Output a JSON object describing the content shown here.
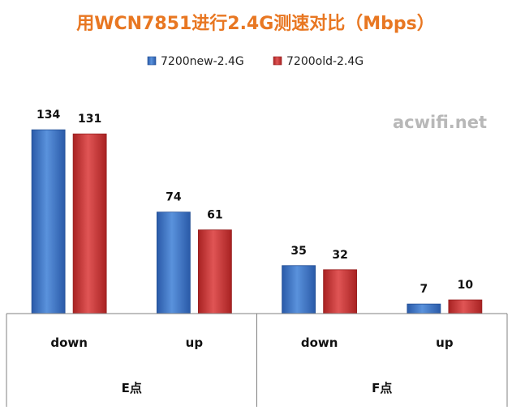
{
  "chart_data": {
    "type": "bar",
    "title": "用WCN7851进行2.4G测速对比（Mbps）",
    "watermark": "acwifi.net",
    "categories": [
      "down",
      "up",
      "down",
      "up"
    ],
    "groups": [
      {
        "label": "E点",
        "categories": [
          "down",
          "up"
        ]
      },
      {
        "label": "F点",
        "categories": [
          "down",
          "up"
        ]
      }
    ],
    "series": [
      {
        "name": "7200new-2.4G",
        "color": "#3a74c4",
        "values": [
          134,
          74,
          35,
          7
        ]
      },
      {
        "name": "7200old-2.4G",
        "color": "#cc3333",
        "values": [
          131,
          61,
          32,
          10
        ]
      }
    ],
    "ylim": [
      0,
      140
    ],
    "legend_position": "top",
    "grid": false,
    "data_labels": true
  }
}
